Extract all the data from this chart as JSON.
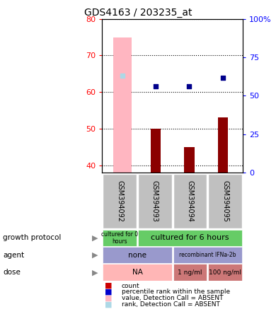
{
  "title": "GDS4163 / 203235_at",
  "samples": [
    "GSM394092",
    "GSM394093",
    "GSM394094",
    "GSM394095"
  ],
  "ylim_left": [
    38,
    80
  ],
  "ylim_right": [
    0,
    100
  ],
  "yticks_left": [
    40,
    50,
    60,
    70,
    80
  ],
  "yticks_right": [
    0,
    25,
    50,
    75,
    100
  ],
  "ytick_labels_right": [
    "0",
    "25",
    "50",
    "75",
    "100%"
  ],
  "bar_values": [
    null,
    50,
    45,
    53
  ],
  "bar_color": "#8B0000",
  "absent_bar_value": 75,
  "absent_bar_color": "#FFB6C1",
  "rank_dots": [
    null,
    61.5,
    61.5,
    64
  ],
  "rank_dot_color": "#00008B",
  "absent_rank_value": 64.5,
  "absent_rank_color": "#ADD8E6",
  "dot_size": 25,
  "growth_color_0": "#66CC66",
  "growth_color_6": "#66CC66",
  "agent_color": "#9999CC",
  "dose_color_na": "#FFB6B6",
  "dose_color_hi": "#CC7777",
  "sample_bg_color": "#C0C0C0",
  "legend_items": [
    "count",
    "percentile rank within the sample",
    "value, Detection Call = ABSENT",
    "rank, Detection Call = ABSENT"
  ],
  "legend_colors": [
    "#CC0000",
    "#0000CC",
    "#FFB6C1",
    "#ADD8E6"
  ]
}
